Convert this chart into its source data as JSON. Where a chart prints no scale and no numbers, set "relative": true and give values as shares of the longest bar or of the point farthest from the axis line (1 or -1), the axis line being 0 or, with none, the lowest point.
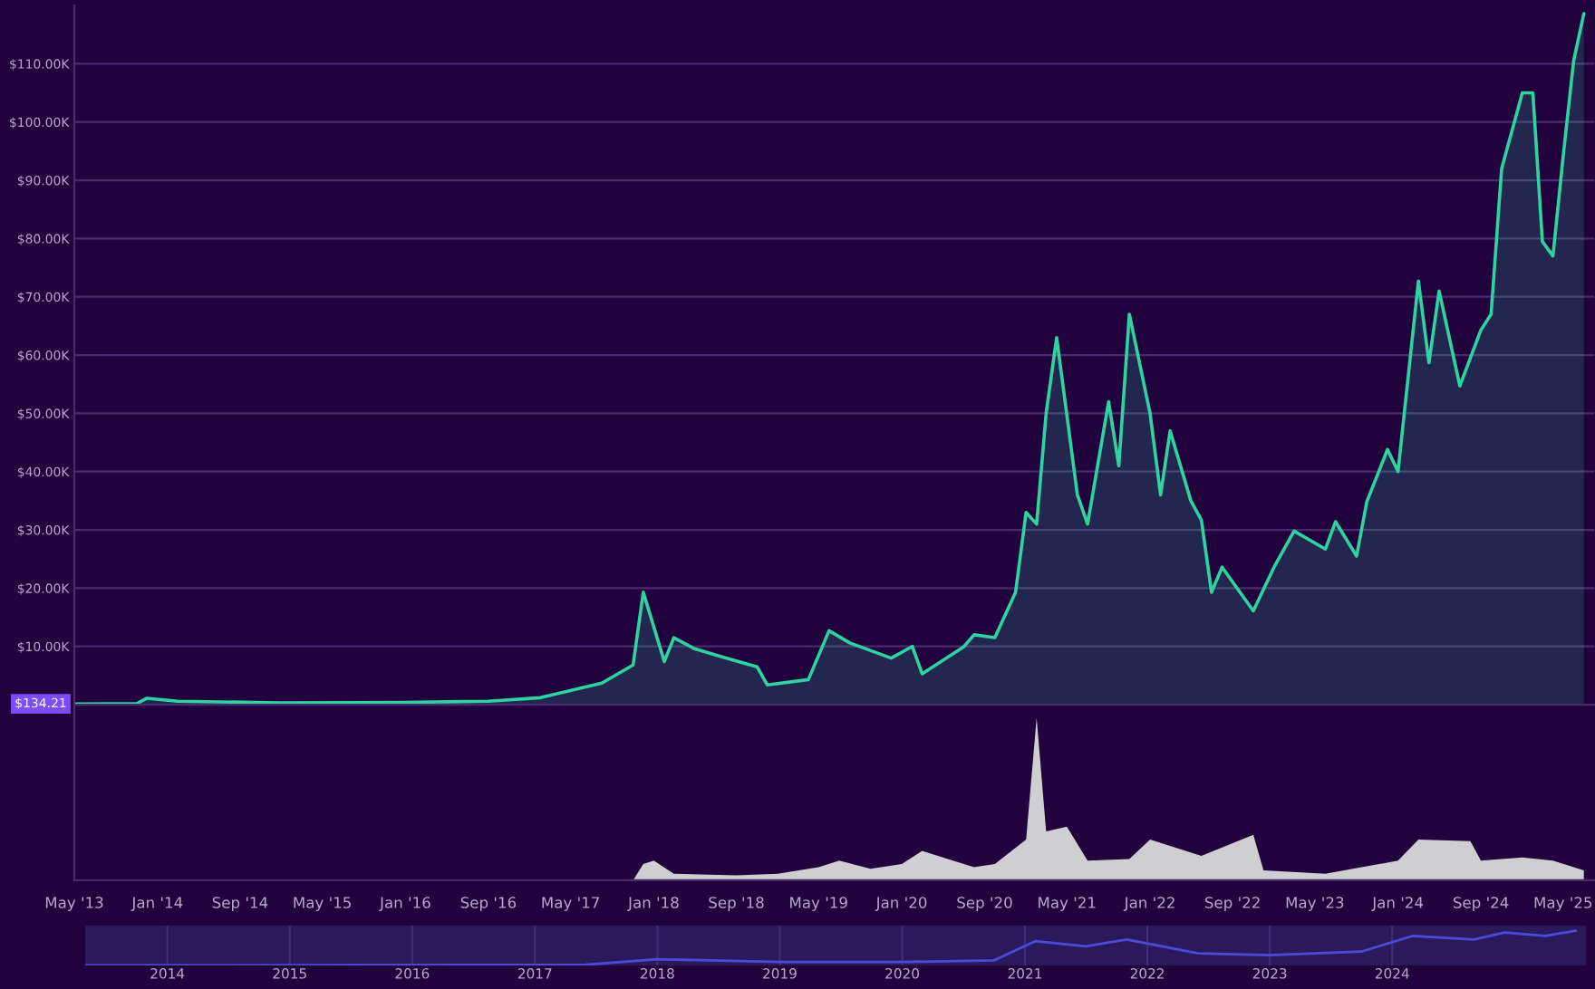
{
  "chart_data": [
    {
      "type": "area",
      "xlim": [
        "2013-05",
        "2025-08"
      ],
      "ylim": [
        0,
        120000
      ],
      "yticks": [
        {
          "value": 10000,
          "label": "$10.00K"
        },
        {
          "value": 20000,
          "label": "$20.00K"
        },
        {
          "value": 30000,
          "label": "$30.00K"
        },
        {
          "value": 40000,
          "label": "$40.00K"
        },
        {
          "value": 50000,
          "label": "$50.00K"
        },
        {
          "value": 60000,
          "label": "$60.00K"
        },
        {
          "value": 70000,
          "label": "$70.00K"
        },
        {
          "value": 80000,
          "label": "$80.00K"
        },
        {
          "value": 90000,
          "label": "$90.00K"
        },
        {
          "value": 100000,
          "label": "$100.00K"
        },
        {
          "value": 110000,
          "label": "$110.00K"
        }
      ],
      "tick_labels": "y",
      "grid": "y",
      "annotations": [
        {
          "text": "$134.21",
          "x": "2013-05",
          "y": 134.21
        }
      ],
      "series": [
        {
          "color": "#2ed3a0",
          "x": [
            "2013-05",
            "2013-11",
            "2013-12",
            "2014-03",
            "2015-01",
            "2016-01",
            "2016-09",
            "2017-02",
            "2017-08",
            "2017-11",
            "2017-12",
            "2018-02",
            "2018-03",
            "2018-05",
            "2018-08",
            "2018-11",
            "2018-12",
            "2019-04",
            "2019-06",
            "2019-08",
            "2019-12",
            "2020-02",
            "2020-03",
            "2020-07",
            "2020-08",
            "2020-10",
            "2020-12",
            "2021-01",
            "2021-02",
            "2021-03",
            "2021-04",
            "2021-06",
            "2021-07",
            "2021-09",
            "2021-10",
            "2021-11",
            "2022-01",
            "2022-02",
            "2022-03",
            "2022-05",
            "2022-06",
            "2022-07",
            "2022-08",
            "2022-11",
            "2023-01",
            "2023-03",
            "2023-06",
            "2023-07",
            "2023-09",
            "2023-10",
            "2023-12",
            "2024-01",
            "2024-03",
            "2024-04",
            "2024-05",
            "2024-07",
            "2024-09",
            "2024-10",
            "2024-11",
            "2025-01",
            "2025-02",
            "2025-03",
            "2025-04",
            "2025-05",
            "2025-06",
            "2025-07"
          ],
          "values": [
            134.21,
            200,
            1100,
            600,
            300,
            400,
            600,
            1200,
            3700,
            6800,
            19300,
            7400,
            11500,
            9600,
            8000,
            6500,
            3400,
            4300,
            12700,
            10600,
            8000,
            10000,
            5300,
            9900,
            12000,
            11500,
            19300,
            33000,
            31000,
            50000,
            63000,
            36000,
            31000,
            52000,
            41000,
            67000,
            50000,
            36000,
            47000,
            35000,
            31700,
            19300,
            23600,
            16100,
            23600,
            29800,
            26700,
            31400,
            25500,
            34800,
            43800,
            40000,
            72700,
            58700,
            71000,
            54700,
            64300,
            67000,
            92000,
            105000,
            105000,
            79500,
            77000,
            94000,
            110500,
            118600
          ]
        }
      ]
    },
    {
      "type": "area",
      "relative": true,
      "xlim": [
        "2013-05",
        "2025-08"
      ],
      "xticks": [
        {
          "value": "2013-05",
          "label": "May '13"
        },
        {
          "value": "2014-01",
          "label": "Jan '14"
        },
        {
          "value": "2014-09",
          "label": "Sep '14"
        },
        {
          "value": "2015-05",
          "label": "May '15"
        },
        {
          "value": "2016-01",
          "label": "Jan '16"
        },
        {
          "value": "2016-09",
          "label": "Sep '16"
        },
        {
          "value": "2017-05",
          "label": "May '17"
        },
        {
          "value": "2018-01",
          "label": "Jan '18"
        },
        {
          "value": "2018-09",
          "label": "Sep '18"
        },
        {
          "value": "2019-05",
          "label": "May '19"
        },
        {
          "value": "2020-01",
          "label": "Jan '20"
        },
        {
          "value": "2020-09",
          "label": "Sep '20"
        },
        {
          "value": "2021-05",
          "label": "May '21"
        },
        {
          "value": "2022-01",
          "label": "Jan '22"
        },
        {
          "value": "2022-09",
          "label": "Sep '22"
        },
        {
          "value": "2023-05",
          "label": "May '23"
        },
        {
          "value": "2024-01",
          "label": "Jan '24"
        },
        {
          "value": "2024-09",
          "label": "Sep '24"
        },
        {
          "value": "2025-05",
          "label": "May '25"
        }
      ],
      "tick_labels": "x",
      "series": [
        {
          "color": "#d9d9d9",
          "x": [
            "2017-11",
            "2017-12",
            "2018-01",
            "2018-03",
            "2018-09",
            "2019-01",
            "2019-05",
            "2019-07",
            "2019-10",
            "2020-01",
            "2020-03",
            "2020-05",
            "2020-08",
            "2020-10",
            "2021-01",
            "2021-02",
            "2021-03",
            "2021-05",
            "2021-07",
            "2021-11",
            "2022-01",
            "2022-06",
            "2022-11",
            "2022-12",
            "2023-06",
            "2024-01",
            "2024-03",
            "2024-08",
            "2024-09",
            "2025-01",
            "2025-04",
            "2025-07"
          ],
          "values": [
            0,
            0.1,
            0.12,
            0.04,
            0.03,
            0.04,
            0.08,
            0.12,
            0.07,
            0.1,
            0.18,
            0.14,
            0.08,
            0.1,
            0.25,
            1.0,
            0.3,
            0.33,
            0.12,
            0.13,
            0.25,
            0.15,
            0.28,
            0.06,
            0.04,
            0.12,
            0.25,
            0.24,
            0.12,
            0.14,
            0.12,
            0.06
          ]
        }
      ]
    },
    {
      "type": "line",
      "relative": true,
      "xlim": [
        "2013-05",
        "2025-08"
      ],
      "xticks": [
        {
          "value": "2014-01",
          "label": "2014"
        },
        {
          "value": "2015-01",
          "label": "2015"
        },
        {
          "value": "2016-01",
          "label": "2016"
        },
        {
          "value": "2017-01",
          "label": "2017"
        },
        {
          "value": "2018-01",
          "label": "2018"
        },
        {
          "value": "2019-01",
          "label": "2019"
        },
        {
          "value": "2020-01",
          "label": "2020"
        },
        {
          "value": "2021-01",
          "label": "2021"
        },
        {
          "value": "2022-01",
          "label": "2022"
        },
        {
          "value": "2023-01",
          "label": "2023"
        },
        {
          "value": "2024-01",
          "label": "2024"
        }
      ],
      "tick_labels": "x",
      "grid": "x",
      "series": [
        {
          "color": "#4b4bd8",
          "x": [
            "2013-05",
            "2017-06",
            "2018-01",
            "2019-01",
            "2020-01",
            "2020-10",
            "2021-02",
            "2021-07",
            "2021-11",
            "2022-06",
            "2023-01",
            "2023-10",
            "2024-03",
            "2024-09",
            "2024-12",
            "2025-04",
            "2025-07"
          ],
          "values": [
            0,
            0.02,
            0.18,
            0.1,
            0.1,
            0.15,
            0.7,
            0.55,
            0.75,
            0.35,
            0.3,
            0.4,
            0.85,
            0.75,
            0.95,
            0.85,
            1.0
          ]
        }
      ]
    }
  ]
}
